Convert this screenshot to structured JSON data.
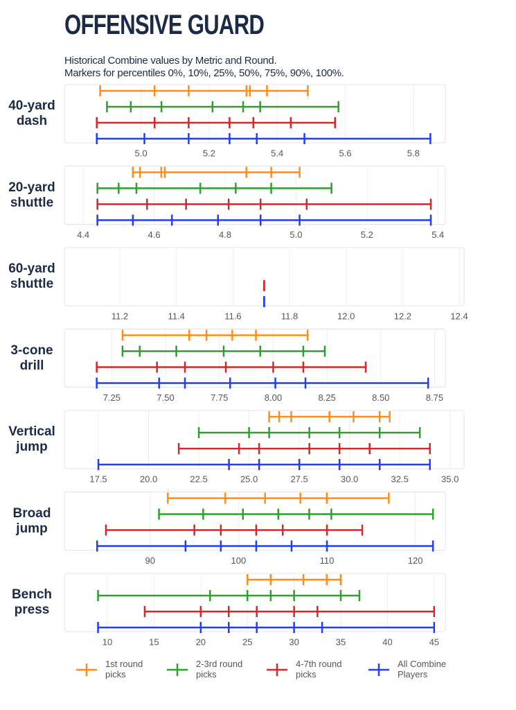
{
  "title": "OFFENSIVE GUARD",
  "subtitle": [
    "Historical Combine values by Metric and Round.",
    "Markers for percentiles 0%, 10%, 25%, 50%, 75%, 90%, 100%."
  ],
  "series": [
    {
      "name": "1st round picks",
      "color": "#ff8c1a"
    },
    {
      "name": "2-3rd round picks",
      "color": "#2ca02c"
    },
    {
      "name": "4-7th round picks",
      "color": "#d62728"
    },
    {
      "name": "All Combine Players",
      "color": "#1f3cff"
    }
  ],
  "chart_data": [
    {
      "type": "percentile",
      "title": "40-yard dash",
      "xlim": [
        4.775,
        5.894
      ],
      "grid": true,
      "xticks": [
        {
          "value": 5,
          "label": "5.0"
        },
        5.2,
        5.4,
        5.6,
        5.8
      ],
      "values": [
        [
          4.88,
          5.04,
          5.14,
          5.31,
          5.32,
          5.37,
          5.49
        ],
        [
          4.9,
          4.97,
          5.06,
          5.21,
          5.3,
          5.35,
          5.58
        ],
        [
          4.87,
          5.04,
          5.14,
          5.26,
          5.33,
          5.44,
          5.57
        ],
        [
          4.87,
          5.01,
          5.14,
          5.26,
          5.34,
          5.48,
          5.85
        ]
      ]
    },
    {
      "type": "percentile",
      "title": "20-yard shuttle",
      "xlim": [
        4.347,
        5.421
      ],
      "grid": true,
      "xticks": [
        4.4,
        4.6,
        4.8,
        {
          "value": 5,
          "label": "5.0"
        },
        5.2,
        5.4
      ],
      "values": [
        [
          4.54,
          4.56,
          4.62,
          4.63,
          4.86,
          4.93,
          5.01
        ],
        [
          4.44,
          4.5,
          4.55,
          4.73,
          4.83,
          4.93,
          5.1
        ],
        [
          4.44,
          4.58,
          4.69,
          4.81,
          4.9,
          5.03,
          5.38
        ],
        [
          4.44,
          4.54,
          4.65,
          4.78,
          4.9,
          5.01,
          5.38
        ]
      ]
    },
    {
      "type": "percentile",
      "title": "60-yard shuttle",
      "xlim": [
        11.004,
        12.417
      ],
      "grid": true,
      "xticks": [
        11.2,
        11.4,
        11.6,
        11.8,
        {
          "value": 12,
          "label": "12.0"
        },
        12.2,
        12.4
      ],
      "values": [
        [
          null,
          null,
          null,
          null,
          null,
          null,
          null
        ],
        [
          null,
          null,
          null,
          null,
          null,
          null,
          null
        ],
        [
          11.71,
          11.71,
          11.71,
          11.71,
          11.71,
          11.71,
          11.71
        ],
        [
          11.71,
          11.71,
          11.71,
          11.71,
          11.71,
          11.71,
          11.71
        ]
      ]
    },
    {
      "type": "percentile",
      "title": "3-cone drill",
      "xlim": [
        7.03,
        8.8
      ],
      "grid": true,
      "xticks": [
        7.25,
        {
          "value": 7.5,
          "label": "7.50"
        },
        7.75,
        {
          "value": 8,
          "label": "8.00"
        },
        8.25,
        {
          "value": 8.5,
          "label": "8.50"
        },
        8.75
      ],
      "values": [
        [
          7.3,
          7.61,
          7.61,
          7.69,
          7.81,
          7.92,
          8.16
        ],
        [
          7.3,
          7.38,
          7.55,
          7.77,
          7.94,
          8.14,
          8.24
        ],
        [
          7.18,
          7.46,
          7.59,
          7.78,
          8.0,
          8.14,
          8.43
        ],
        [
          7.18,
          7.47,
          7.59,
          7.8,
          8.01,
          8.15,
          8.72
        ]
      ]
    },
    {
      "type": "percentile",
      "title": "Vertical jump",
      "xlim": [
        15.81,
        35.7
      ],
      "grid": true,
      "xticks": [
        17.5,
        {
          "value": 20,
          "label": "20.0"
        },
        22.5,
        {
          "value": 25,
          "label": "25.0"
        },
        27.5,
        {
          "value": 30,
          "label": "30.0"
        },
        32.5,
        {
          "value": 35,
          "label": "35.0"
        }
      ],
      "values": [
        [
          26.0,
          26.5,
          27.1,
          29.0,
          30.2,
          31.5,
          32.0
        ],
        [
          22.5,
          25.0,
          26.0,
          28.0,
          29.5,
          31.5,
          33.5
        ],
        [
          21.5,
          24.5,
          25.5,
          28.0,
          29.5,
          31.0,
          34.0
        ],
        [
          17.5,
          24.0,
          25.5,
          27.5,
          29.5,
          31.5,
          34.0
        ]
      ]
    },
    {
      "type": "percentile",
      "title": "Broad jump",
      "xlim": [
        80.3,
        123.4
      ],
      "grid": true,
      "xticks": [
        90,
        100,
        110,
        120
      ],
      "values": [
        [
          92,
          98.5,
          103,
          107,
          110,
          110,
          117
        ],
        [
          91,
          96,
          100.5,
          104.5,
          108,
          110.5,
          122
        ],
        [
          85,
          95,
          98,
          102,
          105,
          110,
          114
        ],
        [
          84,
          94,
          98,
          102,
          106,
          110,
          122
        ]
      ]
    },
    {
      "type": "percentile",
      "title": "Bench press",
      "xlim": [
        5.4,
        46.2
      ],
      "grid": true,
      "xticks": [
        10,
        15,
        20,
        25,
        30,
        35,
        40,
        45
      ],
      "values": [
        [
          25,
          27.5,
          27.5,
          31,
          33.5,
          35,
          35
        ],
        [
          9,
          21,
          25,
          27.5,
          30,
          35,
          37
        ],
        [
          14,
          20,
          23,
          26,
          30,
          32.5,
          45
        ],
        [
          9,
          20,
          23,
          26,
          30,
          33,
          45
        ]
      ]
    }
  ]
}
